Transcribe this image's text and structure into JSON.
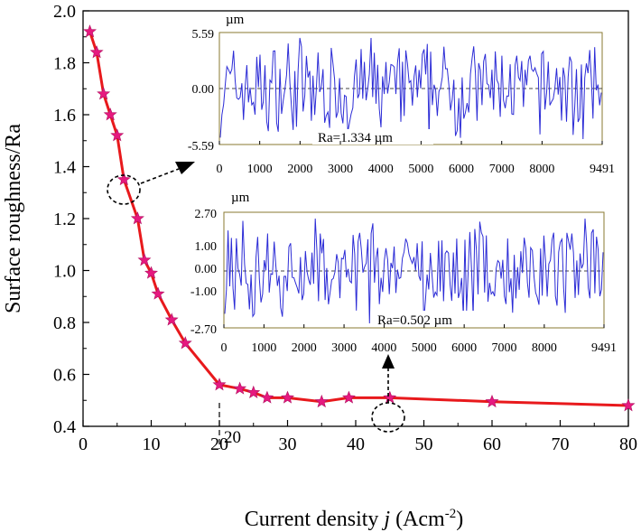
{
  "chart_data": [
    {
      "type": "line",
      "title": "",
      "xlabel_main": "Current density ",
      "xlabel_var": "j",
      "xlabel_unit_prefix": " (Acm",
      "xlabel_unit_sup": "-2",
      "xlabel_unit_suffix": ")",
      "ylabel": "Surface roughness/Ra",
      "xlim": [
        0,
        80
      ],
      "ylim": [
        0.4,
        2.0
      ],
      "xticks": [
        0,
        10,
        20,
        30,
        40,
        50,
        60,
        70,
        80
      ],
      "yticks": [
        0.4,
        0.6,
        0.8,
        1.0,
        1.2,
        1.4,
        1.6,
        1.8,
        2.0
      ],
      "xtick_labels": [
        "0",
        "10",
        "20",
        "30",
        "40",
        "50",
        "60",
        "70",
        "80"
      ],
      "ytick_labels": [
        "0.4",
        "0.6",
        "0.8",
        "1.0",
        "1.2",
        "1.4",
        "1.6",
        "1.8",
        "2.0"
      ],
      "annotation_20": "20",
      "series": [
        {
          "name": "Ra",
          "color": "#e8191c",
          "marker_color": "#e6197f",
          "x": [
            1,
            2,
            3,
            4,
            5,
            6,
            8,
            9,
            10,
            11,
            13,
            15,
            20,
            23,
            25,
            27,
            30,
            35,
            39,
            45,
            60,
            80
          ],
          "y": [
            1.92,
            1.84,
            1.68,
            1.6,
            1.52,
            1.35,
            1.2,
            1.04,
            0.99,
            0.91,
            0.81,
            0.72,
            0.56,
            0.545,
            0.53,
            0.51,
            0.51,
            0.495,
            0.51,
            0.51,
            0.495,
            0.48
          ]
        }
      ]
    },
    {
      "type": "line",
      "name": "profile-inset-top",
      "unit": "µm",
      "xlim": [
        0,
        9491
      ],
      "ylim": [
        -5.59,
        5.59
      ],
      "xtick_labels": [
        "0",
        "1000",
        "2000",
        "3000",
        "4000",
        "5000",
        "6000",
        "7000",
        "8000",
        "9491"
      ],
      "ytick_labels": [
        "5.59",
        "0.00",
        "-5.59"
      ],
      "ra_label": "Ra=1.334 µm",
      "line_color": "#2c2cd6"
    },
    {
      "type": "line",
      "name": "profile-inset-bottom",
      "unit": "µm",
      "xlim": [
        0,
        9491
      ],
      "ylim": [
        -2.7,
        2.7
      ],
      "xtick_labels": [
        "0",
        "1000",
        "2000",
        "3000",
        "4000",
        "5000",
        "6000",
        "7000",
        "8000",
        "9491"
      ],
      "ytick_labels": [
        "2.70",
        "1.00",
        "0.00",
        "-1.00",
        "-2.70"
      ],
      "ra_label": "Ra=0.502 µm",
      "line_color": "#2c2cd6"
    }
  ]
}
